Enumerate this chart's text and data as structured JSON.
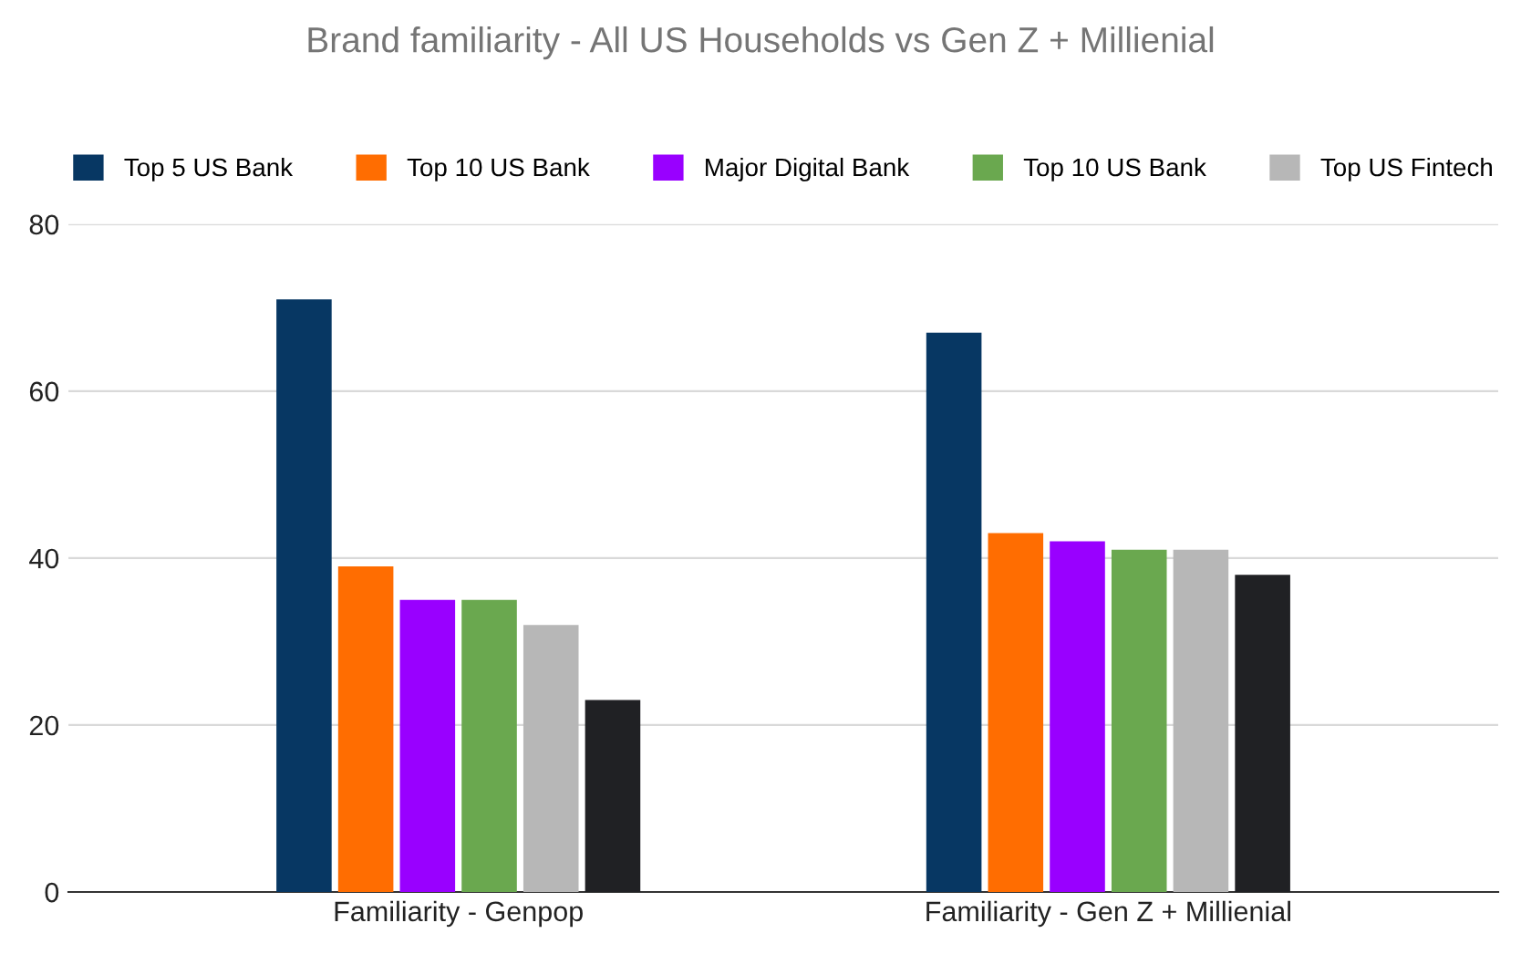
{
  "chart_data": {
    "type": "bar",
    "title": "Brand familiarity - All US Households vs Gen Z + Millienial",
    "categories": [
      "Familiarity - Genpop",
      "Familiarity - Gen Z + Millienial"
    ],
    "series": [
      {
        "name": "Top 5 US Bank",
        "color": "#073763",
        "values": [
          71,
          67
        ]
      },
      {
        "name": "Top 10 US Bank",
        "color": "#ff6d01",
        "values": [
          39,
          43
        ]
      },
      {
        "name": "Major Digital Bank",
        "color": "#9900ff",
        "values": [
          35,
          42
        ]
      },
      {
        "name": "Top 10 US Bank",
        "color": "#6aa84f",
        "values": [
          35,
          41
        ]
      },
      {
        "name": "Top US Fintech",
        "color": "#b7b7b7",
        "values": [
          32,
          41
        ]
      },
      {
        "color": "#202124",
        "values": [
          23,
          38
        ]
      }
    ],
    "ylim": [
      0,
      80
    ],
    "yticks": [
      0,
      20,
      40,
      60,
      80
    ],
    "grid": "y",
    "legend": "top"
  }
}
